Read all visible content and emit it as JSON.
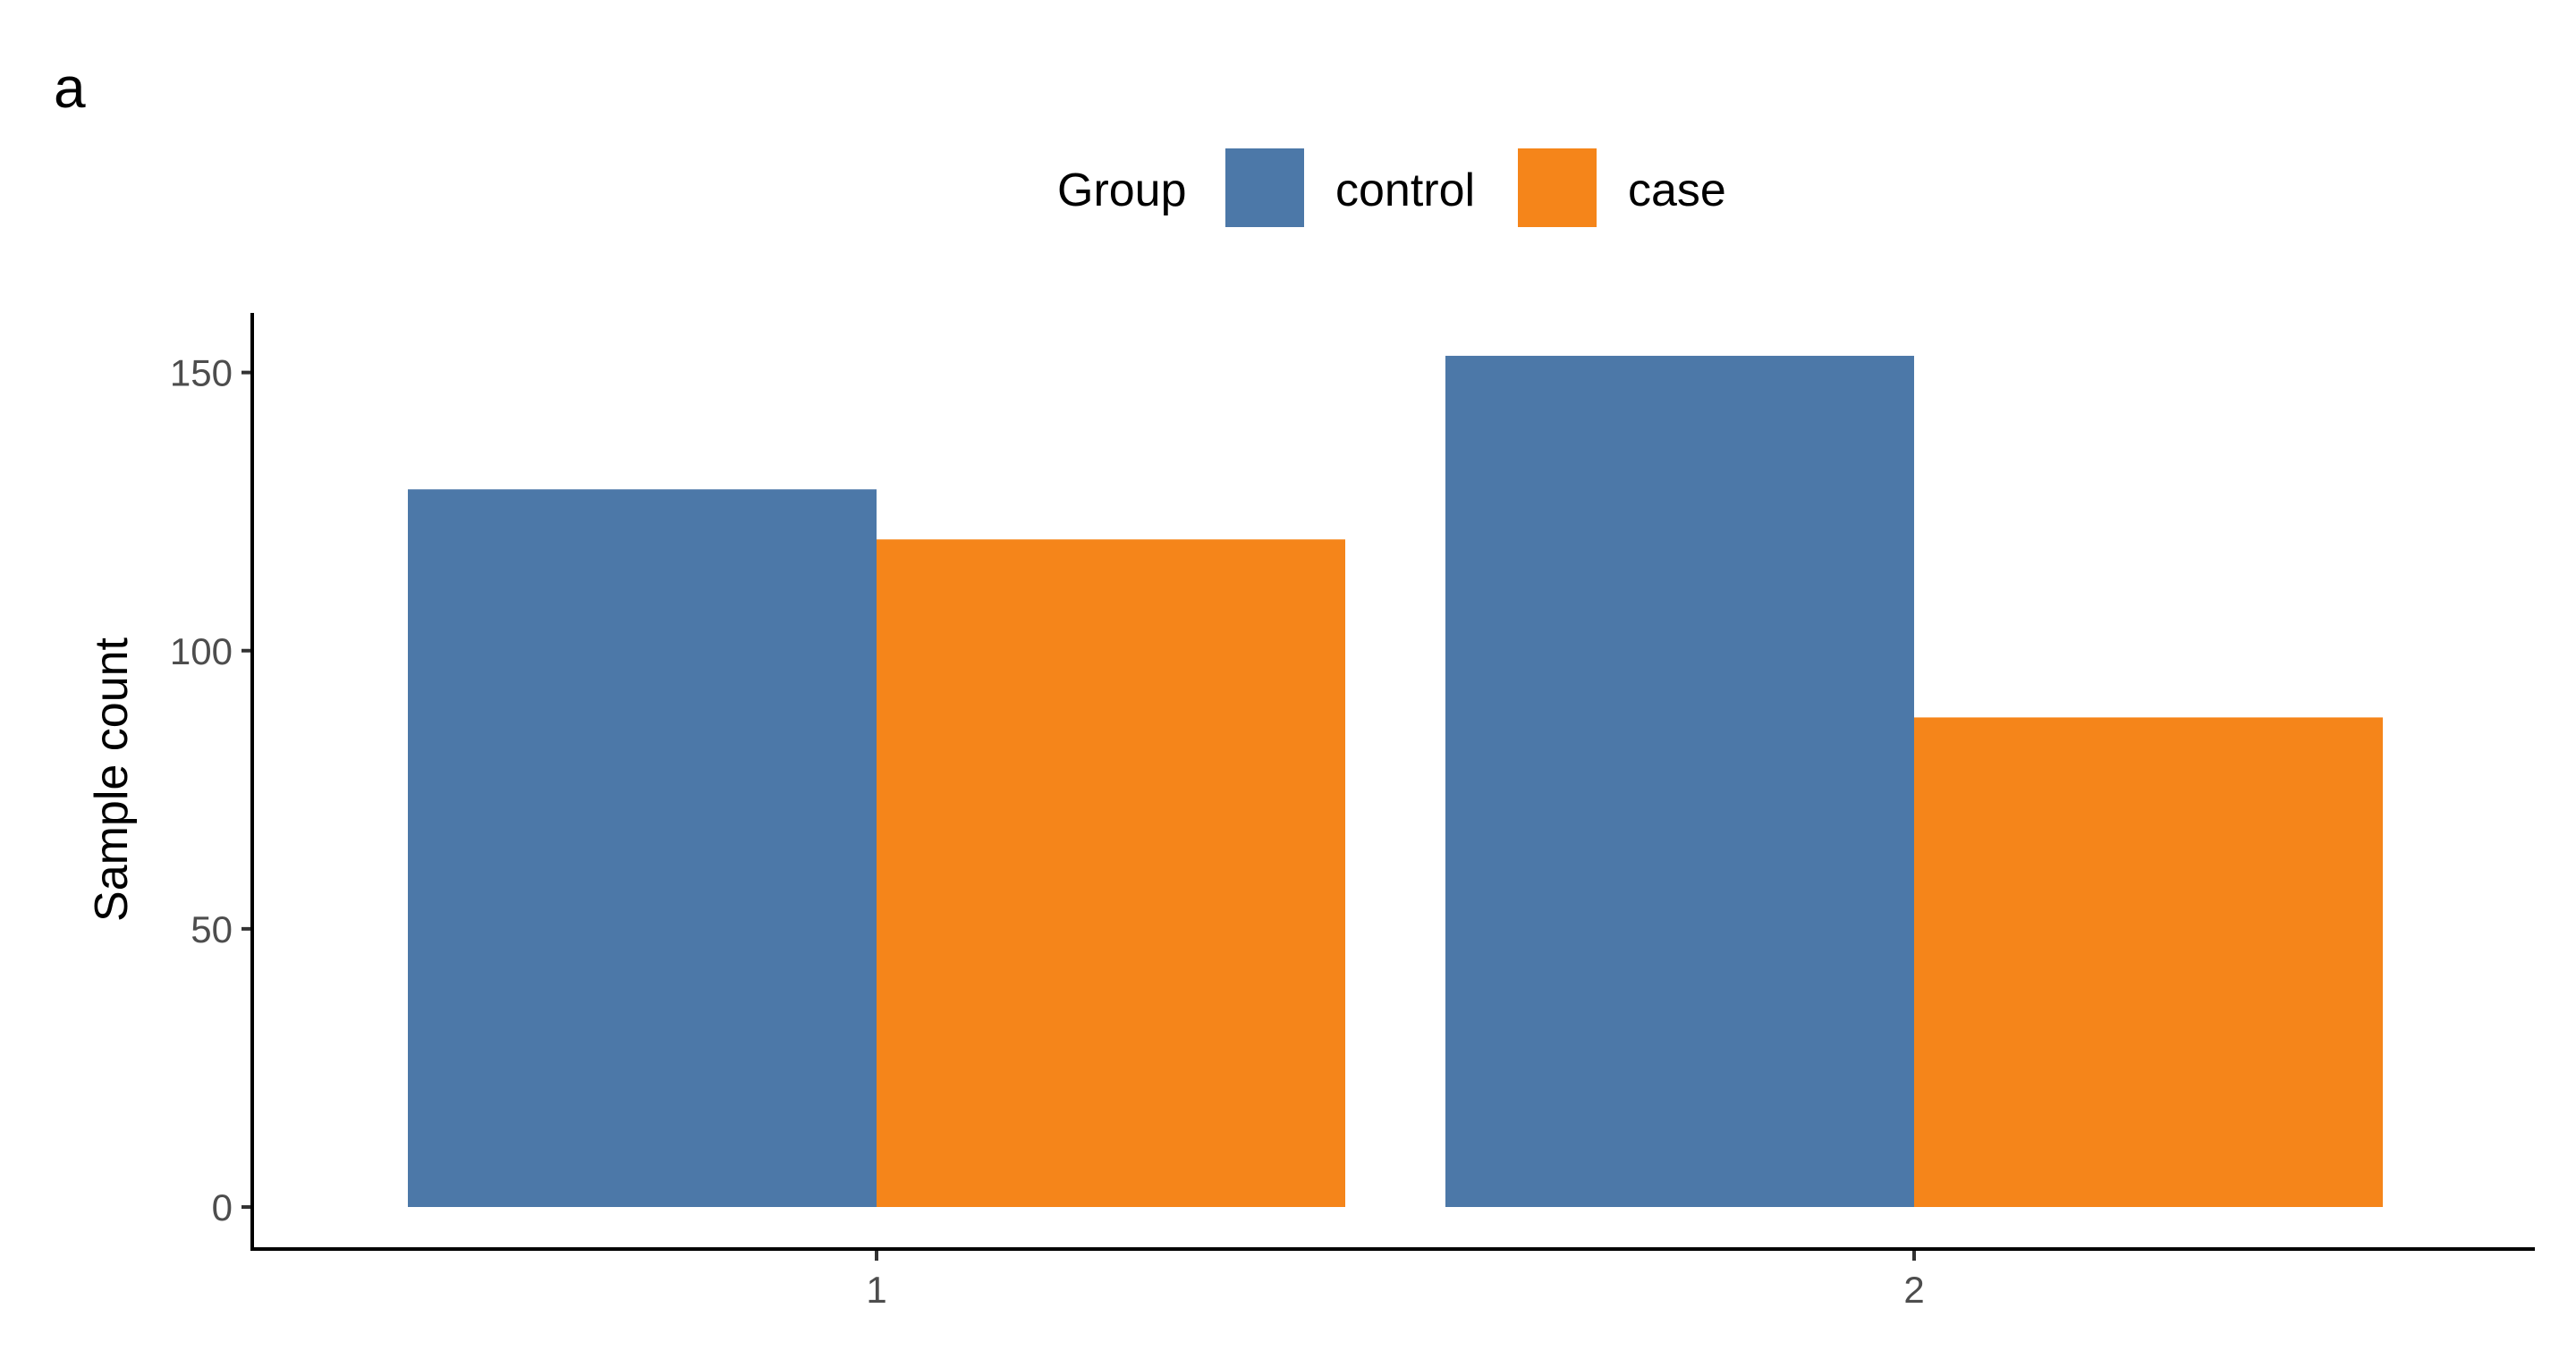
{
  "panel_label": "a",
  "legend": {
    "title": "Group",
    "items": [
      {
        "label": "control",
        "color": "#4C78A8"
      },
      {
        "label": "case",
        "color": "#F5851A"
      }
    ]
  },
  "chart_data": {
    "type": "bar",
    "categories": [
      "1",
      "2"
    ],
    "series": [
      {
        "name": "control",
        "color": "#4C78A8",
        "values": [
          129,
          153
        ]
      },
      {
        "name": "case",
        "color": "#F5851A",
        "values": [
          120,
          88
        ]
      }
    ],
    "xlabel": "",
    "ylabel": "Sample count",
    "yticks": [
      0,
      50,
      100,
      150
    ],
    "ylim": [
      0,
      160
    ],
    "grid": false,
    "legend_position": "top"
  }
}
